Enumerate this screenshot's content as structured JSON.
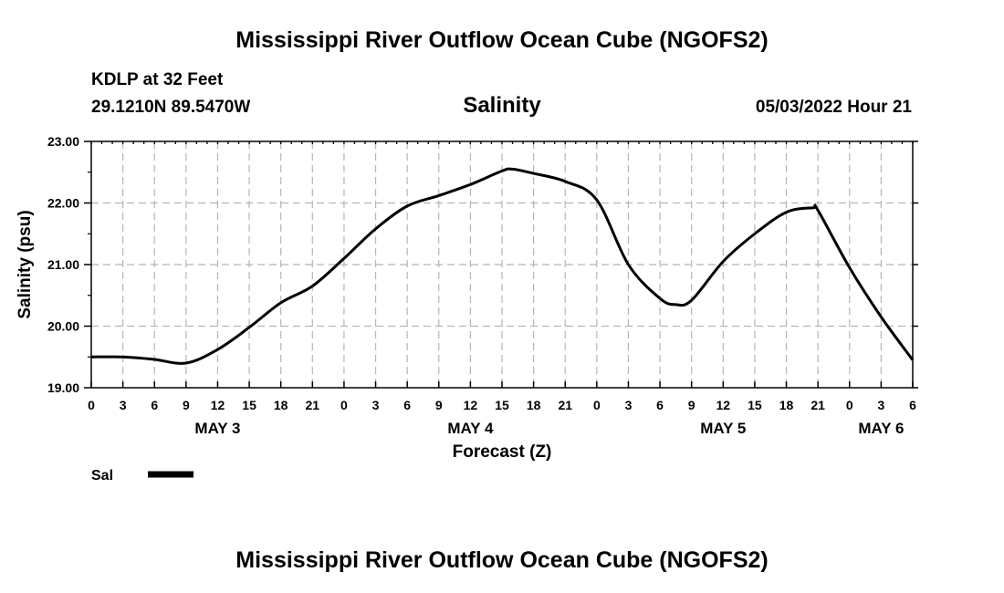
{
  "header": {
    "title": "Mississippi River Outflow Ocean Cube (NGOFS2)",
    "station": "KDLP at 32 Feet",
    "coords": "29.1210N  89.5470W",
    "datetime": "05/03/2022 Hour 21"
  },
  "footer": {
    "title": "Mississippi River Outflow Ocean Cube (NGOFS2)"
  },
  "chart_data": {
    "type": "line",
    "title": "Salinity",
    "xlabel": "Forecast (Z)",
    "ylabel": "Salinity (psu)",
    "xlim": [
      0,
      78
    ],
    "ylim": [
      19,
      23
    ],
    "y_ticks": [
      {
        "value": 19,
        "label": "19.00"
      },
      {
        "value": 20,
        "label": "20.00"
      },
      {
        "value": 21,
        "label": "21.00"
      },
      {
        "value": 22,
        "label": "22.00"
      },
      {
        "value": 23,
        "label": "23.00"
      }
    ],
    "x_ticks": [
      {
        "hour": 0,
        "label": "0"
      },
      {
        "hour": 3,
        "label": "3"
      },
      {
        "hour": 6,
        "label": "6"
      },
      {
        "hour": 9,
        "label": "9"
      },
      {
        "hour": 12,
        "label": "12"
      },
      {
        "hour": 15,
        "label": "15"
      },
      {
        "hour": 18,
        "label": "18"
      },
      {
        "hour": 21,
        "label": "21"
      },
      {
        "hour": 24,
        "label": "0"
      },
      {
        "hour": 27,
        "label": "3"
      },
      {
        "hour": 30,
        "label": "6"
      },
      {
        "hour": 33,
        "label": "9"
      },
      {
        "hour": 36,
        "label": "12"
      },
      {
        "hour": 39,
        "label": "15"
      },
      {
        "hour": 42,
        "label": "18"
      },
      {
        "hour": 45,
        "label": "21"
      },
      {
        "hour": 48,
        "label": "0"
      },
      {
        "hour": 51,
        "label": "3"
      },
      {
        "hour": 54,
        "label": "6"
      },
      {
        "hour": 57,
        "label": "9"
      },
      {
        "hour": 60,
        "label": "12"
      },
      {
        "hour": 63,
        "label": "15"
      },
      {
        "hour": 66,
        "label": "18"
      },
      {
        "hour": 69,
        "label": "21"
      },
      {
        "hour": 72,
        "label": "0"
      },
      {
        "hour": 75,
        "label": "3"
      },
      {
        "hour": 78,
        "label": "6"
      }
    ],
    "day_labels": [
      {
        "hour": 12,
        "label": "MAY 3"
      },
      {
        "hour": 36,
        "label": "MAY 4"
      },
      {
        "hour": 60,
        "label": "MAY 5"
      },
      {
        "hour": 75,
        "label": "MAY 6"
      }
    ],
    "series": [
      {
        "name": "Sal",
        "color": "#000000",
        "x": [
          0,
          3,
          6,
          9,
          12,
          15,
          18,
          21,
          24,
          27,
          30,
          33,
          36,
          39,
          40,
          42,
          45,
          48,
          51,
          54,
          55.5,
          57,
          60,
          63,
          66,
          68.5,
          69,
          72,
          75,
          78
        ],
        "values": [
          19.5,
          19.5,
          19.46,
          19.4,
          19.62,
          19.98,
          20.38,
          20.65,
          21.1,
          21.58,
          21.95,
          22.12,
          22.3,
          22.52,
          22.55,
          22.48,
          22.35,
          22.05,
          21.0,
          20.45,
          20.35,
          20.42,
          21.05,
          21.5,
          21.85,
          21.92,
          21.88,
          20.95,
          20.15,
          19.45
        ]
      }
    ]
  }
}
